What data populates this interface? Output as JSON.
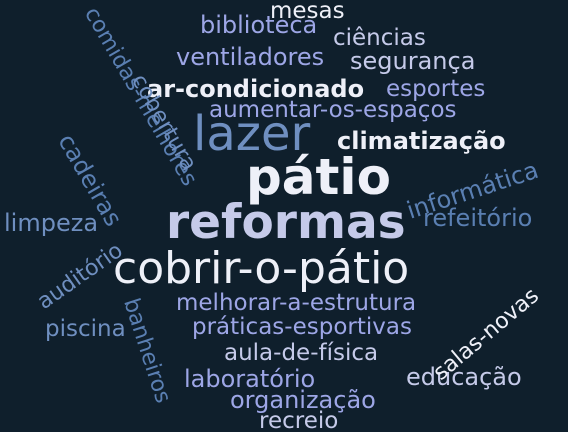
{
  "palette": {
    "white": "#eef0f8",
    "pale": "#c5cae9",
    "lavender": "#9da6e6",
    "slate": "#6f8fc0",
    "steel": "#5a7fb2"
  },
  "words": [
    {
      "text": "mesas",
      "color": "white"
    },
    {
      "text": "biblioteca",
      "color": "lavender"
    },
    {
      "text": "ciências",
      "color": "pale"
    },
    {
      "text": "ventiladores",
      "color": "lavender"
    },
    {
      "text": "segurança",
      "color": "pale"
    },
    {
      "text": "ar-condicionado",
      "color": "white"
    },
    {
      "text": "esportes",
      "color": "lavender"
    },
    {
      "text": "aumentar-os-espaços",
      "color": "lavender"
    },
    {
      "text": "lazer",
      "color": "slate"
    },
    {
      "text": "climatização",
      "color": "white"
    },
    {
      "text": "pátio",
      "color": "white"
    },
    {
      "text": "informática",
      "color": "steel"
    },
    {
      "text": "reformas",
      "color": "pale"
    },
    {
      "text": "refeitório",
      "color": "steel"
    },
    {
      "text": "limpeza",
      "color": "slate"
    },
    {
      "text": "cobrir-o-pátio",
      "color": "white"
    },
    {
      "text": "melhorar-a-estrutura",
      "color": "lavender"
    },
    {
      "text": "práticas-esportivas",
      "color": "lavender"
    },
    {
      "text": "piscina",
      "color": "slate"
    },
    {
      "text": "aula-de-física",
      "color": "pale"
    },
    {
      "text": "salas-novas",
      "color": "white"
    },
    {
      "text": "laboratório",
      "color": "lavender"
    },
    {
      "text": "educação",
      "color": "pale"
    },
    {
      "text": "organização",
      "color": "lavender"
    },
    {
      "text": "recreio",
      "color": "pale"
    },
    {
      "text": "comidas-melhores",
      "color": "steel"
    },
    {
      "text": "cobertura",
      "color": "slate"
    },
    {
      "text": "cadeiras",
      "color": "steel"
    },
    {
      "text": "auditório",
      "color": "slate"
    },
    {
      "text": "banheiros",
      "color": "steel"
    }
  ]
}
